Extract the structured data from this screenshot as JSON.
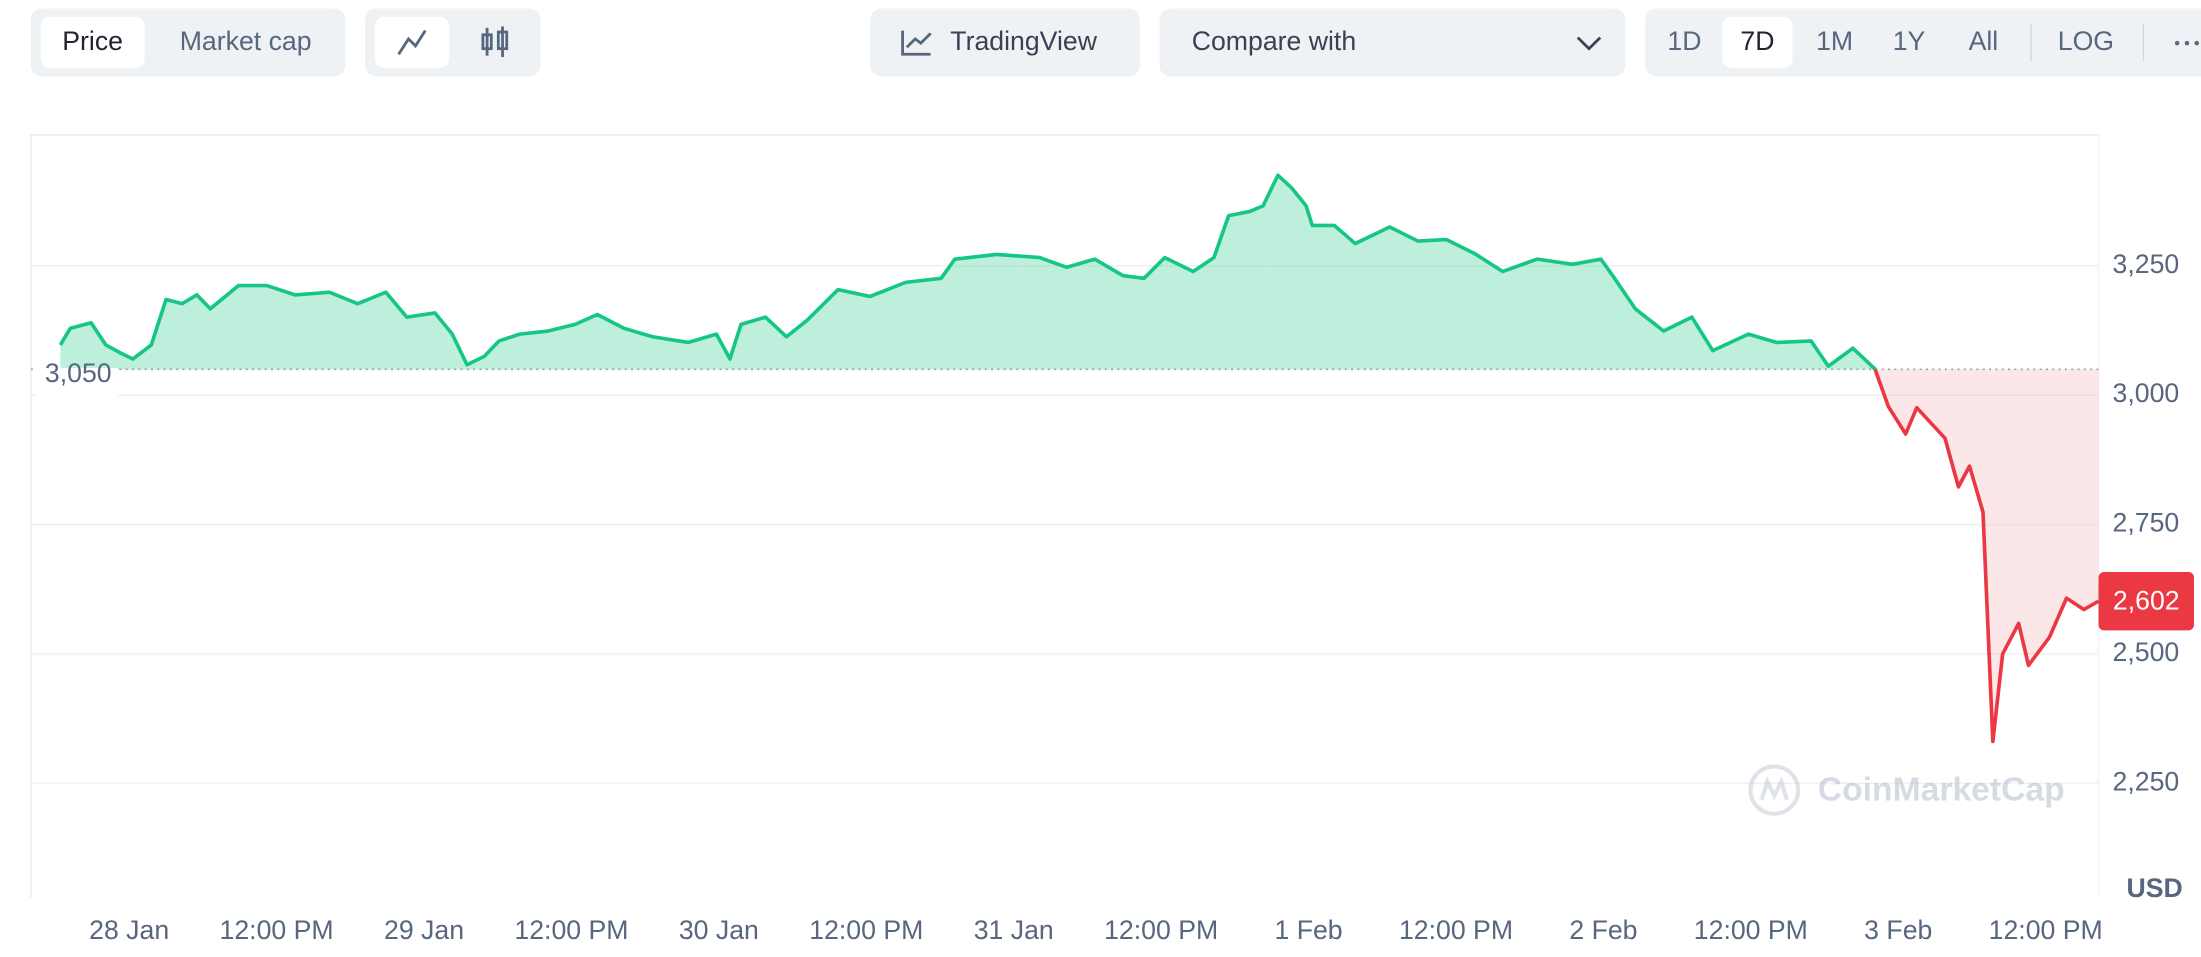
{
  "toolbar": {
    "view_tabs": [
      "Price",
      "Market cap"
    ],
    "tradingview": "TradingView",
    "compare": "Compare with",
    "ranges": [
      "1D",
      "7D",
      "1M",
      "1Y",
      "All"
    ],
    "log": "LOG"
  },
  "chart_data": {
    "type": "line",
    "watermark": "CoinMarketCap",
    "currency": "USD",
    "x": [
      -5.6,
      -4.8,
      -3.1,
      -1.9,
      -0.8,
      0.3,
      1.8,
      3,
      4.3,
      5.5,
      6.6,
      8.9,
      11.2,
      13.5,
      16.3,
      18.6,
      20.9,
      22.6,
      24.9,
      26.3,
      27.5,
      28.9,
      30.1,
      31.8,
      34.1,
      36.3,
      38.1,
      40.3,
      42.6,
      45.5,
      47.8,
      48.9,
      49.8,
      51.8,
      53.5,
      55.2,
      57.7,
      60.3,
      63.2,
      66.1,
      67.2,
      70.6,
      74.1,
      76.3,
      78.6,
      80.9,
      82.6,
      84.3,
      86.6,
      88.3,
      89.5,
      91.2,
      92.3,
      93.5,
      94.6,
      95.8,
      96.3,
      98.1,
      99.8,
      102.6,
      104.9,
      107.2,
      109.5,
      111.8,
      114.6,
      117.5,
      119.8,
      120.9,
      122.6,
      124.9,
      127.2,
      128.9,
      131.8,
      134.1,
      136.9,
      138.3,
      140.3,
      142.1,
      143.2,
      144.6,
      145.5,
      147.8,
      148.9,
      149.8,
      150.9,
      151.7,
      152.5,
      153.8,
      154.6,
      156.3,
      157.7,
      159.1,
      160.3
    ],
    "values": [
      3097,
      3129,
      3140,
      3097,
      3083,
      3070,
      3097,
      3185,
      3177,
      3194,
      3167,
      3212,
      3212,
      3194,
      3199,
      3177,
      3199,
      3151,
      3159,
      3118,
      3059,
      3075,
      3105,
      3118,
      3124,
      3137,
      3156,
      3129,
      3113,
      3102,
      3118,
      3070,
      3137,
      3151,
      3113,
      3145,
      3204,
      3191,
      3218,
      3226,
      3263,
      3272,
      3266,
      3247,
      3263,
      3231,
      3226,
      3266,
      3239,
      3266,
      3347,
      3355,
      3366,
      3425,
      3401,
      3366,
      3328,
      3328,
      3293,
      3325,
      3298,
      3301,
      3274,
      3239,
      3263,
      3253,
      3263,
      3226,
      3167,
      3124,
      3151,
      3086,
      3118,
      3102,
      3105,
      3056,
      3091,
      3051,
      2978,
      2925,
      2976,
      2917,
      2823,
      2863,
      2774,
      2331,
      2500,
      2559,
      2478,
      2532,
      2608,
      2586,
      2602
    ],
    "color_up": "#16c784",
    "color_down": "#ea3943",
    "baseline": {
      "value": 3050,
      "label": "3,050"
    },
    "last_price": {
      "value": 2602,
      "label": "2,602"
    },
    "xlim": [
      -8,
      160.3
    ],
    "ylim": [
      2030,
      3503
    ],
    "xticks": [
      {
        "value": 0,
        "label": "28 Jan"
      },
      {
        "value": 12,
        "label": "12:00 PM"
      },
      {
        "value": 24,
        "label": "29 Jan"
      },
      {
        "value": 36,
        "label": "12:00 PM"
      },
      {
        "value": 48,
        "label": "30 Jan"
      },
      {
        "value": 60,
        "label": "12:00 PM"
      },
      {
        "value": 72,
        "label": "31 Jan"
      },
      {
        "value": 84,
        "label": "12:00 PM"
      },
      {
        "value": 96,
        "label": "1 Feb"
      },
      {
        "value": 108,
        "label": "12:00 PM"
      },
      {
        "value": 120,
        "label": "2 Feb"
      },
      {
        "value": 132,
        "label": "12:00 PM"
      },
      {
        "value": 144,
        "label": "3 Feb"
      },
      {
        "value": 156,
        "label": "12:00 PM"
      }
    ],
    "yticks": [
      {
        "value": 2250,
        "label": "2,250"
      },
      {
        "value": 2500,
        "label": "2,500"
      },
      {
        "value": 2750,
        "label": "2,750"
      },
      {
        "value": 3000,
        "label": "3,000"
      },
      {
        "value": 3250,
        "label": "3,250"
      }
    ],
    "grid": true
  }
}
